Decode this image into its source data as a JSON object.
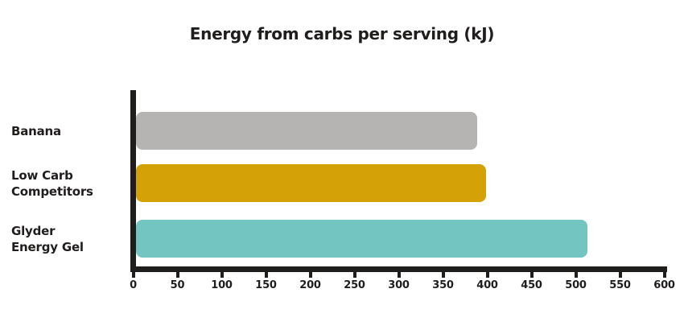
{
  "title": "Energy from carbs per serving (kJ)",
  "colors": {
    "text": "#201d1d",
    "axis": "#201d1d",
    "background": "#ffffff"
  },
  "chart_data": {
    "type": "bar",
    "orientation": "horizontal",
    "title": "Energy from carbs per serving (kJ)",
    "xlabel": "",
    "ylabel": "",
    "xlim": [
      0,
      600
    ],
    "xticks": [
      0,
      50,
      100,
      150,
      200,
      250,
      300,
      350,
      400,
      450,
      500,
      550,
      600
    ],
    "grid": false,
    "legend": false,
    "categories": [
      "Banana",
      "Low Carb Competitors",
      "Glyder Energy Gel"
    ],
    "category_label_lines": [
      [
        "Banana"
      ],
      [
        "Low Carb",
        "Competitors"
      ],
      [
        "Glyder",
        "Energy Gel"
      ]
    ],
    "values": [
      385,
      395,
      510
    ],
    "bar_colors": [
      "#b5b4b3",
      "#d4a106",
      "#72c5c1"
    ]
  }
}
